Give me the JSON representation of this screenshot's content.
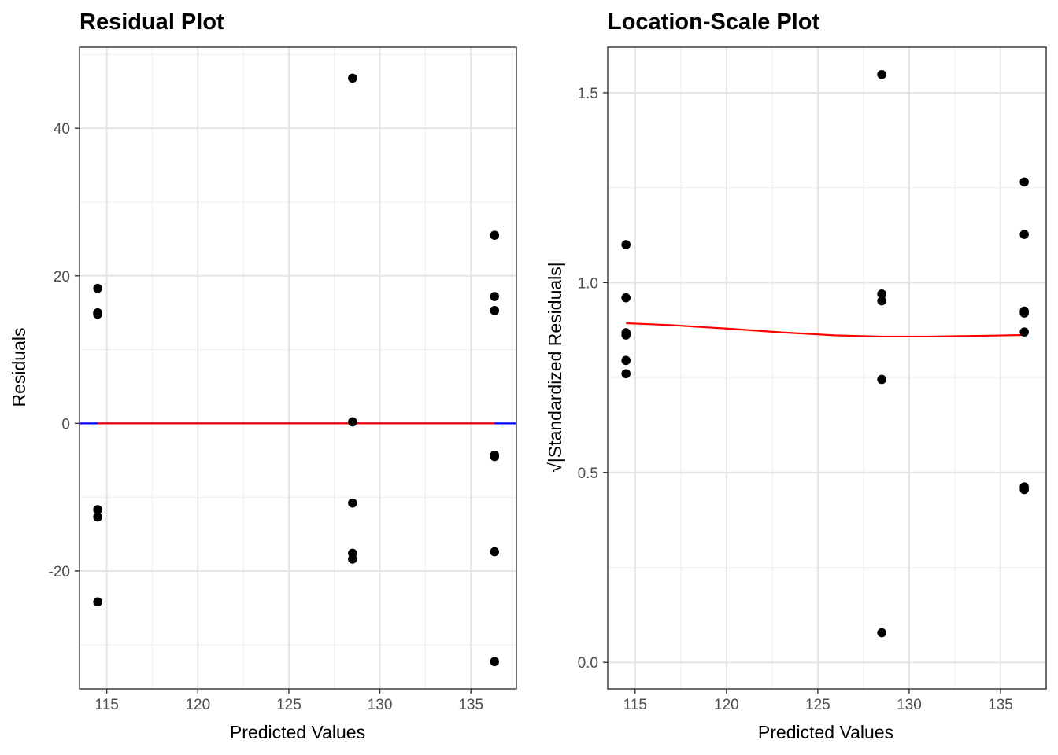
{
  "chart_data": [
    {
      "type": "scatter",
      "title": "Residual Plot",
      "xlabel": "Predicted Values",
      "ylabel": "Residuals",
      "xlim": [
        113.5,
        137.5
      ],
      "ylim": [
        -36,
        51
      ],
      "x_ticks": [
        115,
        120,
        125,
        130,
        135
      ],
      "x_tick_labels": [
        "115",
        "120",
        "125",
        "130",
        "135"
      ],
      "y_ticks": [
        -20,
        0,
        20,
        40
      ],
      "y_tick_labels": [
        "-20",
        "0",
        "20",
        "40"
      ],
      "grid": true,
      "points": [
        {
          "x": 114.5,
          "y": 18.3
        },
        {
          "x": 114.5,
          "y": 15.0
        },
        {
          "x": 114.5,
          "y": 14.8
        },
        {
          "x": 114.5,
          "y": -11.7
        },
        {
          "x": 114.5,
          "y": -12.7
        },
        {
          "x": 114.5,
          "y": -24.2
        },
        {
          "x": 128.5,
          "y": 46.8
        },
        {
          "x": 128.5,
          "y": 0.2
        },
        {
          "x": 128.5,
          "y": -10.8
        },
        {
          "x": 128.5,
          "y": -17.6
        },
        {
          "x": 128.5,
          "y": -18.4
        },
        {
          "x": 136.3,
          "y": 25.5
        },
        {
          "x": 136.3,
          "y": 17.2
        },
        {
          "x": 136.3,
          "y": 15.3
        },
        {
          "x": 136.3,
          "y": -4.3
        },
        {
          "x": 136.3,
          "y": -4.5
        },
        {
          "x": 136.3,
          "y": -17.4
        },
        {
          "x": 136.3,
          "y": -32.3
        }
      ],
      "reference_line": {
        "y": 0,
        "color": "#0000ff"
      },
      "fit_line": {
        "x": [
          114.5,
          136.3
        ],
        "y": [
          0,
          0
        ],
        "color": "#ff0000"
      }
    },
    {
      "type": "scatter",
      "title": "Location-Scale Plot",
      "xlabel": "Predicted Values",
      "ylabel": "√|Standardized Residuals|",
      "xlim": [
        113.5,
        137.5
      ],
      "ylim": [
        -0.07,
        1.62
      ],
      "x_ticks": [
        115,
        120,
        125,
        130,
        135
      ],
      "x_tick_labels": [
        "115",
        "120",
        "125",
        "130",
        "135"
      ],
      "y_ticks": [
        0.0,
        0.5,
        1.0,
        1.5
      ],
      "y_tick_labels": [
        "0.0",
        "0.5",
        "1.0",
        "1.5"
      ],
      "grid": true,
      "points": [
        {
          "x": 114.5,
          "y": 1.1
        },
        {
          "x": 114.5,
          "y": 0.96
        },
        {
          "x": 114.5,
          "y": 0.868
        },
        {
          "x": 114.5,
          "y": 0.862
        },
        {
          "x": 114.5,
          "y": 0.795
        },
        {
          "x": 114.5,
          "y": 0.76
        },
        {
          "x": 128.5,
          "y": 1.548
        },
        {
          "x": 128.5,
          "y": 0.97
        },
        {
          "x": 128.5,
          "y": 0.952
        },
        {
          "x": 128.5,
          "y": 0.745
        },
        {
          "x": 128.5,
          "y": 0.078
        },
        {
          "x": 136.3,
          "y": 1.265
        },
        {
          "x": 136.3,
          "y": 1.127
        },
        {
          "x": 136.3,
          "y": 0.925
        },
        {
          "x": 136.3,
          "y": 0.92
        },
        {
          "x": 136.3,
          "y": 0.87
        },
        {
          "x": 136.3,
          "y": 0.462
        },
        {
          "x": 136.3,
          "y": 0.455
        }
      ],
      "fit_line": {
        "x": [
          114.5,
          117,
          120,
          123,
          126,
          128.5,
          131,
          134,
          136.3
        ],
        "y": [
          0.893,
          0.888,
          0.879,
          0.869,
          0.861,
          0.858,
          0.858,
          0.86,
          0.862
        ],
        "color": "#ff0000"
      }
    }
  ]
}
